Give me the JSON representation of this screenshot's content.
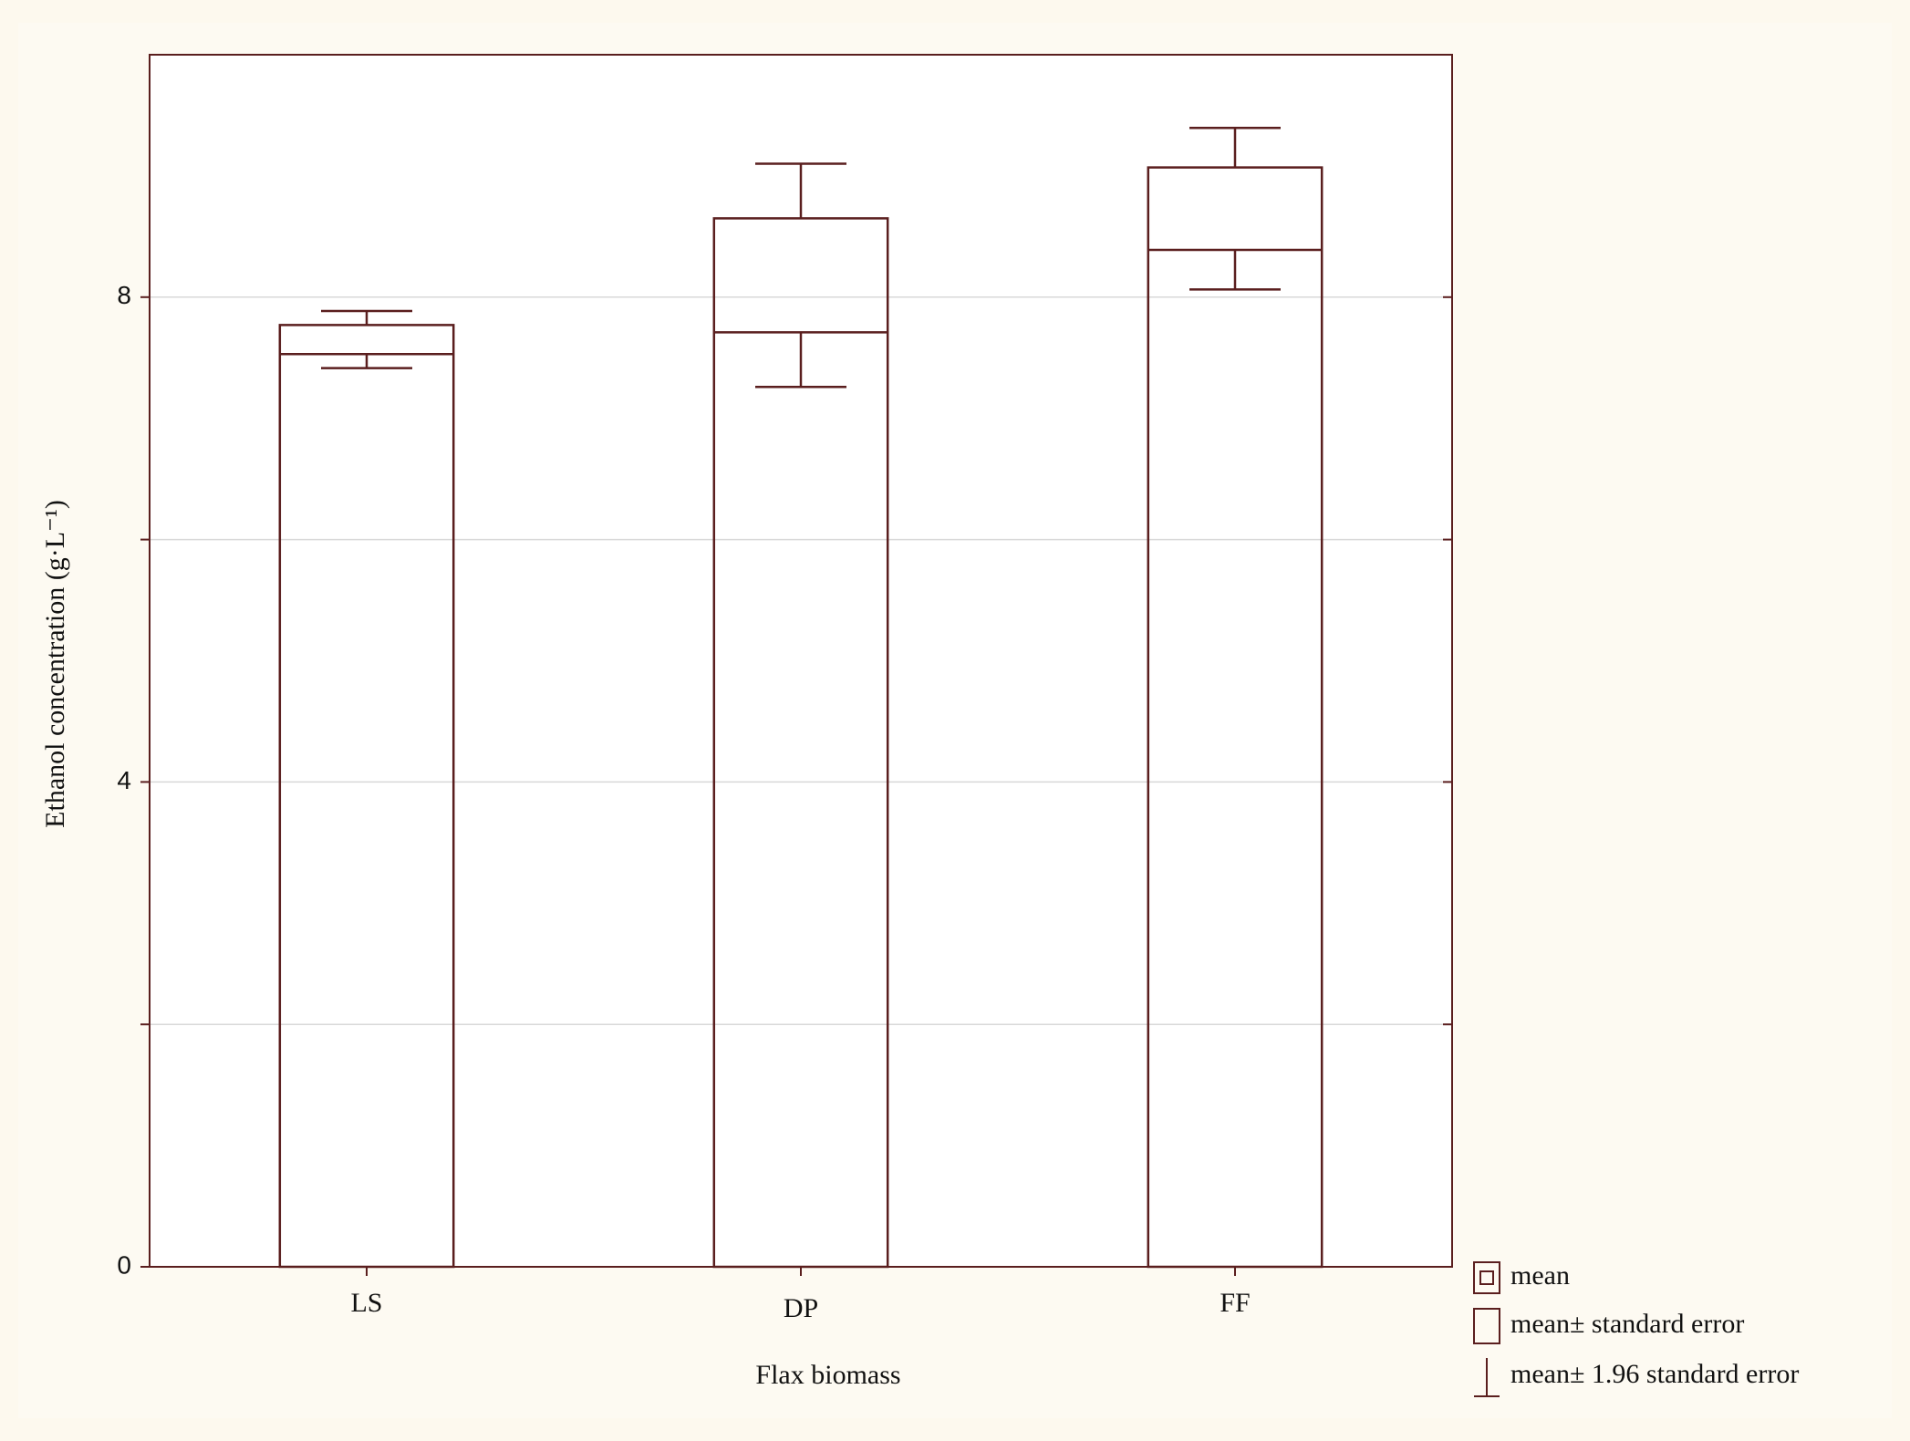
{
  "chart_data": {
    "type": "bar_error",
    "x_label": "Flax biomass",
    "y_label": "Ethanol concentration (g·L⁻¹)",
    "categories": [
      "LS",
      "DP",
      "FF"
    ],
    "values": [
      7.65,
      8.18,
      8.73
    ],
    "se": [
      0.12,
      0.47,
      0.34
    ],
    "ci_factor": 1.96,
    "color": "#5a1e1e",
    "ylim": [
      0,
      10
    ],
    "yticks": [
      0,
      4,
      8
    ],
    "minor_yticks": [
      2,
      6
    ],
    "grid": true,
    "legend": [
      "mean",
      "mean± standard error",
      "mean± 1.96 standard error"
    ],
    "legend_position": "bottom-right"
  }
}
